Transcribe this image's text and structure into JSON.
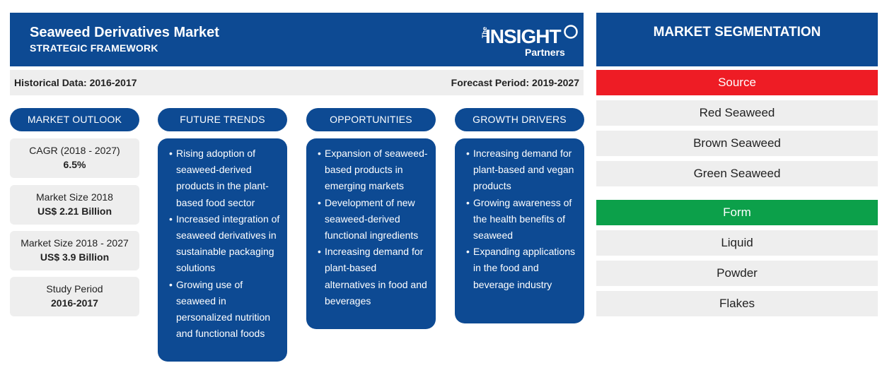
{
  "header": {
    "title": "Seaweed Derivatives Market",
    "subtitle": "STRATEGIC FRAMEWORK",
    "logo": {
      "the": "The",
      "insight": "INSIGHT",
      "partners": "Partners"
    }
  },
  "periods": {
    "historical": "Historical Data: 2016-2017",
    "forecast": "Forecast Period: 2019-2027"
  },
  "columns": {
    "outlook": "MARKET OUTLOOK",
    "trends": "FUTURE TRENDS",
    "opportunities": "OPPORTUNITIES",
    "drivers": "GROWTH DRIVERS"
  },
  "outlook": [
    {
      "label": "CAGR (2018 - 2027)",
      "value": "6.5%"
    },
    {
      "label": "Market Size 2018",
      "value": "US$ 2.21 Billion"
    },
    {
      "label": "Market Size 2018 - 2027",
      "value": "US$ 3.9 Billion"
    },
    {
      "label": "Study Period",
      "value": "2016-2017"
    }
  ],
  "trends": [
    "Rising adoption of seaweed-derived products in the plant-based food sector",
    "Increased integration of seaweed derivatives in sustainable packaging solutions",
    "Growing use of seaweed in personalized nutrition and functional foods"
  ],
  "opportunities": [
    "Expansion of seaweed-based products in emerging markets",
    "Development of new seaweed-derived functional ingredients",
    "Increasing demand for plant-based alternatives in food and beverages"
  ],
  "drivers": [
    "Increasing demand for plant-based and vegan products",
    "Growing awareness of the health benefits of seaweed",
    "Expanding applications in the food and beverage industry"
  ],
  "segmentation": {
    "title": "MARKET SEGMENTATION",
    "groups": [
      {
        "name": "Source",
        "color": "#ee1c25",
        "items": [
          "Red Seaweed",
          "Brown Seaweed",
          "Green Seaweed"
        ]
      },
      {
        "name": "Form",
        "color": "#0ca04a",
        "items": [
          "Liquid",
          "Powder",
          "Flakes"
        ]
      }
    ]
  },
  "colors": {
    "primary": "#0d4a93",
    "panel": "#eeeeee"
  }
}
